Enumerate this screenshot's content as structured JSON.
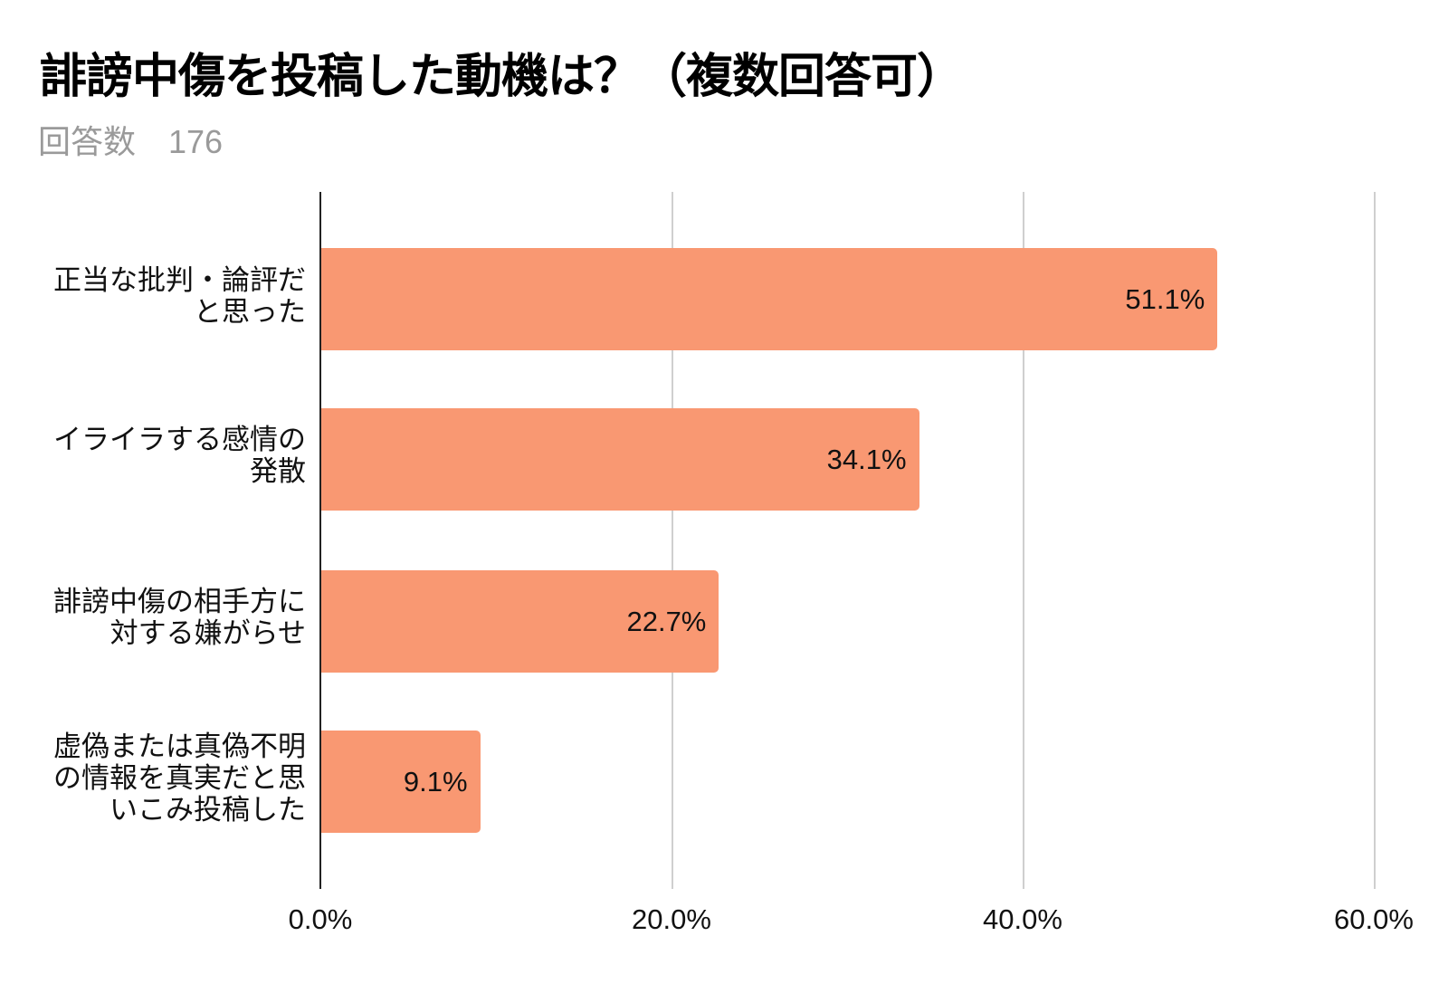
{
  "header": {
    "title": "誹謗中傷を投稿した動機は？（複数回答可）",
    "responses_label": "回答数",
    "responses_count": "176"
  },
  "colors": {
    "bar": "#f99872",
    "gridline": "#cfcfcf",
    "axis": "#222222",
    "subtitle": "#9a9a9a"
  },
  "chart_data": {
    "type": "bar",
    "orientation": "horizontal",
    "title": "誹謗中傷を投稿した動機は？（複数回答可）",
    "subtitle": "回答数 176",
    "categories": [
      "正当な批判・論評だと思った",
      "イライラする感情の発散",
      "誹謗中傷の相手方に対する嫌がらせ",
      "虚偽または真偽不明の情報を真実だと思いこみ投稿した"
    ],
    "category_labels_wrapped": [
      "正当な批判・論評だ\nと思った",
      "イライラする感情の\n発散",
      "誹謗中傷の相手方に\n対する嫌がらせ",
      "虚偽または真偽不明\nの情報を真実だと思\nいこみ投稿した"
    ],
    "values": [
      51.1,
      34.1,
      22.7,
      9.1
    ],
    "value_labels": [
      "51.1%",
      "34.1%",
      "22.7%",
      "9.1%"
    ],
    "xlabel": "",
    "ylabel": "",
    "xlim": [
      0,
      60
    ],
    "x_ticks": [
      "0.0%",
      "20.0%",
      "40.0%",
      "60.0%"
    ],
    "grid": true,
    "legend": "none"
  }
}
